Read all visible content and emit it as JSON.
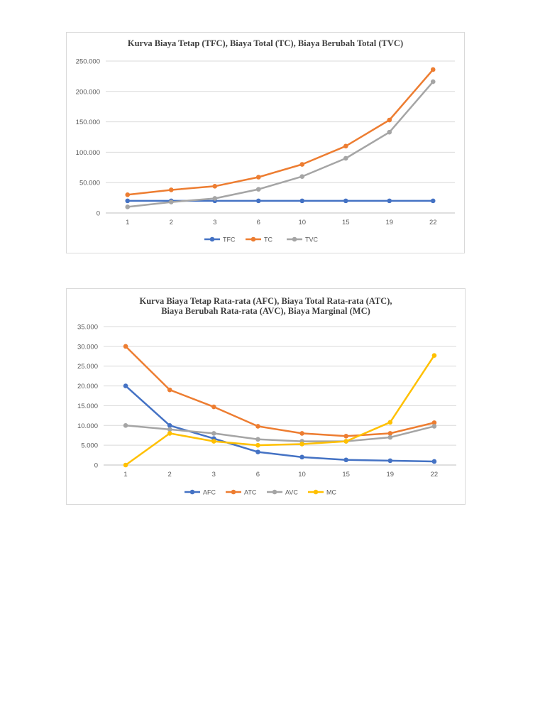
{
  "chart_data": [
    {
      "type": "line",
      "title": "Kurva Biaya Tetap (TFC), Biaya Total (TC), Biaya Berubah Total (TVC)",
      "categories": [
        "1",
        "2",
        "3",
        "6",
        "10",
        "15",
        "19",
        "22"
      ],
      "ylim": [
        0,
        250000
      ],
      "yticks": [
        "0",
        "50.000",
        "100.000",
        "150.000",
        "200.000",
        "250.000"
      ],
      "ytick_values": [
        0,
        50000,
        100000,
        150000,
        200000,
        250000
      ],
      "grid": true,
      "legend_position": "bottom",
      "series": [
        {
          "name": "TFC",
          "color": "#4472c4",
          "values": [
            20000,
            20000,
            20000,
            20000,
            20000,
            20000,
            20000,
            20000
          ]
        },
        {
          "name": "TC",
          "color": "#ed7d31",
          "values": [
            30000,
            38000,
            44000,
            59000,
            80000,
            110000,
            153000,
            236000
          ]
        },
        {
          "name": "TVC",
          "color": "#a5a5a5",
          "values": [
            10000,
            18000,
            24000,
            39000,
            60000,
            90000,
            133000,
            216000
          ]
        }
      ]
    },
    {
      "type": "line",
      "title_lines": [
        "Kurva Biaya Tetap Rata-rata (AFC), Biaya Total Rata-rata (ATC),",
        "Biaya Berubah Rata-rata (AVC), Biaya Marginal (MC)"
      ],
      "categories": [
        "1",
        "2",
        "3",
        "6",
        "10",
        "15",
        "19",
        "22"
      ],
      "ylim": [
        0,
        35000
      ],
      "yticks": [
        "0",
        "5.000",
        "10.000",
        "15.000",
        "20.000",
        "25.000",
        "30.000",
        "35.000"
      ],
      "ytick_values": [
        0,
        5000,
        10000,
        15000,
        20000,
        25000,
        30000,
        35000
      ],
      "grid": true,
      "legend_position": "bottom",
      "series": [
        {
          "name": "AFC",
          "color": "#4472c4",
          "values": [
            20000,
            10000,
            6700,
            3300,
            2000,
            1300,
            1100,
            900
          ]
        },
        {
          "name": "ATC",
          "color": "#ed7d31",
          "values": [
            30000,
            19000,
            14700,
            9800,
            8000,
            7300,
            8000,
            10700
          ]
        },
        {
          "name": "AVC",
          "color": "#a5a5a5",
          "values": [
            10000,
            9000,
            8000,
            6500,
            6000,
            6000,
            7000,
            9800
          ]
        },
        {
          "name": "MC",
          "color": "#ffc000",
          "values": [
            0,
            8000,
            6000,
            5000,
            5300,
            6000,
            10800,
            27700
          ]
        }
      ]
    }
  ]
}
